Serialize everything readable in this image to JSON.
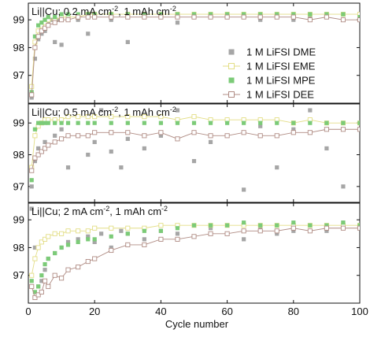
{
  "chart_data": {
    "type": "scatter",
    "shared_x": {
      "label": "Cycle number",
      "range": [
        0,
        100
      ],
      "ticks": [
        0,
        20,
        40,
        60,
        80,
        100
      ]
    },
    "legend": {
      "placement": "top-right of first panel",
      "entries": [
        {
          "label": "1 M LiFSI DME",
          "color": "#a6a6a6",
          "marker": "filled-square"
        },
        {
          "label": "1 M LiFSI EME",
          "color": "#e3de86",
          "marker": "open-square"
        },
        {
          "label": "1 M LiFSI MPE",
          "color": "#7ccb78",
          "marker": "filled-square"
        },
        {
          "label": "1 M LiFSI DEE",
          "color": "#b08c84",
          "marker": "open-square"
        }
      ]
    },
    "panels": [
      {
        "title_main": "Li||Cu; 0.2 mA cm",
        "title_sup1": "-2",
        "title_mid": ", 1 mAh cm",
        "title_sup2": "-2",
        "y_range": [
          96,
          99.6
        ],
        "y_ticks": [
          97,
          98,
          99
        ],
        "series": [
          {
            "name": "1 M LiFSI DME",
            "x": [
              1,
              2,
              3,
              4,
              5,
              6,
              7,
              8,
              9,
              10,
              12,
              15,
              18,
              20,
              25,
              30,
              35,
              40,
              45,
              50,
              55,
              60,
              65,
              70,
              75,
              80,
              85,
              90,
              95,
              100
            ],
            "y": [
              96.2,
              97.6,
              98.3,
              98.5,
              98.6,
              98.9,
              99.0,
              98.2,
              99.0,
              98.1,
              99.0,
              99.0,
              98.5,
              99.1,
              99.0,
              98.2,
              99.1,
              99.1,
              98.9,
              99.1,
              99.1,
              99.1,
              99.1,
              99.0,
              99.1,
              99.0,
              99.1,
              99.1,
              99.0,
              99.1
            ]
          },
          {
            "name": "1 M LiFSI EME",
            "x": [
              1,
              2,
              3,
              4,
              5,
              6,
              8,
              10,
              12,
              15,
              18,
              20,
              25,
              30,
              35,
              40,
              45,
              50,
              55,
              60,
              65,
              70,
              75,
              80,
              85,
              90,
              95,
              100
            ],
            "y": [
              96.6,
              98.2,
              98.6,
              98.8,
              98.9,
              99.0,
              99.0,
              99.1,
              99.1,
              99.1,
              99.2,
              99.2,
              99.2,
              99.2,
              99.2,
              99.2,
              99.2,
              99.2,
              99.2,
              99.2,
              99.2,
              99.2,
              99.2,
              99.2,
              99.2,
              99.2,
              99.2,
              99.2
            ]
          },
          {
            "name": "1 M LiFSI MPE",
            "x": [
              1,
              2,
              3,
              4,
              5,
              6,
              8,
              10,
              12,
              15,
              18,
              20,
              25,
              30,
              35,
              40,
              45,
              50,
              55,
              60,
              65,
              70,
              75,
              80,
              85,
              90,
              95,
              100
            ],
            "y": [
              96.4,
              98.4,
              98.8,
              98.9,
              99.0,
              99.1,
              99.1,
              99.2,
              99.2,
              99.2,
              99.2,
              99.2,
              99.2,
              99.2,
              99.2,
              99.2,
              99.2,
              99.2,
              99.2,
              99.2,
              99.2,
              99.2,
              99.2,
              99.2,
              99.2,
              99.2,
              99.2,
              99.1
            ]
          },
          {
            "name": "1 M LiFSI DEE",
            "x": [
              1,
              2,
              3,
              4,
              5,
              6,
              8,
              10,
              12,
              15,
              18,
              20,
              25,
              30,
              35,
              40,
              45,
              50,
              55,
              60,
              65,
              70,
              75,
              80,
              85,
              90,
              95,
              100
            ],
            "y": [
              96.3,
              98.0,
              98.4,
              98.6,
              98.7,
              98.8,
              98.9,
              99.0,
              99.0,
              99.1,
              99.1,
              99.1,
              99.1,
              99.1,
              99.1,
              99.1,
              99.1,
              99.1,
              99.1,
              99.1,
              99.1,
              99.1,
              99.1,
              99.1,
              99.0,
              99.1,
              99.0,
              99.0
            ]
          }
        ]
      },
      {
        "title_main": "Li||Cu; 0.5 mA cm",
        "title_sup1": "-2",
        "title_mid": ", 1 mAh cm",
        "title_sup2": "-2",
        "y_range": [
          96.5,
          99.6
        ],
        "y_ticks": [
          97,
          98,
          99
        ],
        "series": [
          {
            "name": "1 M LiFSI DME",
            "x": [
              1,
              2,
              3,
              5,
              8,
              10,
              12,
              15,
              18,
              20,
              22,
              25,
              28,
              30,
              35,
              40,
              45,
              50,
              55,
              60,
              65,
              70,
              75,
              80,
              85,
              90,
              95,
              100
            ],
            "y": [
              97.0,
              97.8,
              98.2,
              98.4,
              98.6,
              98.8,
              97.6,
              98.6,
              98.0,
              98.4,
              99.4,
              98.1,
              97.6,
              98.5,
              98.2,
              98.6,
              99.4,
              97.8,
              98.4,
              98.6,
              96.9,
              98.9,
              97.6,
              98.8,
              99.4,
              98.2,
              97.0,
              98.8
            ]
          },
          {
            "name": "1 M LiFSI EME",
            "x": [
              1,
              2,
              3,
              4,
              5,
              6,
              8,
              10,
              12,
              15,
              18,
              20,
              25,
              30,
              35,
              40,
              45,
              50,
              55,
              60,
              65,
              70,
              75,
              80,
              85,
              90,
              95,
              100
            ],
            "y": [
              97.6,
              98.6,
              98.9,
              99.0,
              99.1,
              99.1,
              99.1,
              99.1,
              99.2,
              99.2,
              99.2,
              99.2,
              99.2,
              99.2,
              99.2,
              99.2,
              99.1,
              99.2,
              99.1,
              99.1,
              99.1,
              99.1,
              99.1,
              99.0,
              99.1,
              99.0,
              99.0,
              99.0
            ]
          },
          {
            "name": "1 M LiFSI MPE",
            "x": [
              1,
              2,
              3,
              4,
              5,
              6,
              8,
              10,
              12,
              15,
              18,
              20,
              25,
              30,
              35,
              40,
              45,
              50,
              55,
              60,
              65,
              70,
              75,
              80,
              85,
              90,
              95,
              100
            ],
            "y": [
              97.2,
              98.8,
              99.0,
              99.0,
              99.0,
              99.0,
              99.0,
              99.0,
              99.0,
              99.0,
              99.0,
              99.0,
              99.0,
              99.0,
              99.0,
              99.0,
              99.0,
              99.0,
              99.0,
              99.0,
              99.0,
              99.0,
              99.0,
              99.0,
              99.0,
              99.0,
              99.0,
              99.0
            ]
          },
          {
            "name": "1 M LiFSI DEE",
            "x": [
              1,
              2,
              3,
              4,
              5,
              6,
              8,
              10,
              12,
              15,
              18,
              20,
              25,
              30,
              35,
              40,
              45,
              50,
              55,
              60,
              65,
              70,
              75,
              80,
              85,
              90,
              95,
              100
            ],
            "y": [
              97.5,
              97.9,
              98.0,
              98.1,
              98.2,
              98.3,
              98.4,
              98.5,
              98.6,
              98.6,
              98.6,
              98.7,
              98.7,
              98.7,
              98.6,
              98.7,
              98.5,
              98.7,
              98.6,
              98.6,
              98.7,
              98.6,
              98.6,
              98.7,
              98.7,
              98.8,
              98.8,
              98.8
            ]
          }
        ]
      },
      {
        "title_main": "Li||Cu; 2 mA cm",
        "title_sup1": "-2",
        "title_mid": ", 1 mAh cm",
        "title_sup2": "-2",
        "y_range": [
          96,
          99.6
        ],
        "y_ticks": [
          97,
          98,
          99
        ],
        "series": [
          {
            "name": "1 M LiFSI DME",
            "x": [
              1,
              2,
              3,
              4,
              5,
              6,
              8,
              10,
              12,
              15,
              18,
              20,
              22,
              25,
              28,
              30,
              35,
              40,
              45,
              50,
              55,
              60,
              65,
              70,
              75,
              80,
              85,
              90,
              95,
              100
            ],
            "y": [
              99.4,
              98.0,
              96.6,
              96.8,
              97.2,
              97.6,
              97.8,
              98.0,
              98.2,
              98.3,
              98.4,
              98.2,
              98.5,
              98.0,
              98.6,
              98.5,
              98.3,
              98.6,
              98.5,
              98.4,
              98.7,
              98.5,
              98.3,
              98.7,
              98.5,
              98.6,
              98.8,
              98.6,
              98.9,
              98.7
            ]
          },
          {
            "name": "1 M LiFSI EME",
            "x": [
              1,
              2,
              3,
              4,
              5,
              6,
              8,
              10,
              12,
              15,
              18,
              20,
              25,
              30,
              35,
              40,
              45,
              50,
              55,
              60,
              65,
              70,
              75,
              80,
              85,
              90,
              95,
              100
            ],
            "y": [
              97.0,
              97.6,
              98.0,
              98.2,
              98.3,
              98.4,
              98.5,
              98.5,
              98.6,
              98.6,
              98.6,
              98.7,
              98.7,
              98.7,
              98.7,
              98.8,
              98.8,
              98.8,
              98.8,
              98.8,
              98.8,
              98.8,
              98.8,
              98.8,
              98.8,
              98.8,
              98.8,
              98.8
            ]
          },
          {
            "name": "1 M LiFSI MPE",
            "x": [
              1,
              2,
              3,
              4,
              5,
              6,
              8,
              10,
              12,
              15,
              18,
              20,
              25,
              30,
              35,
              40,
              45,
              50,
              55,
              60,
              65,
              70,
              75,
              80,
              85,
              90,
              95,
              100
            ],
            "y": [
              96.8,
              96.4,
              96.6,
              97.0,
              97.4,
              97.6,
              97.8,
              98.0,
              98.1,
              98.2,
              98.3,
              98.3,
              98.4,
              98.5,
              98.6,
              98.6,
              98.7,
              98.8,
              98.8,
              98.8,
              98.9,
              98.8,
              98.8,
              98.9,
              98.8,
              98.8,
              98.9,
              98.8
            ]
          },
          {
            "name": "1 M LiFSI DEE",
            "x": [
              1,
              2,
              3,
              4,
              5,
              6,
              8,
              10,
              12,
              15,
              18,
              20,
              25,
              30,
              35,
              40,
              45,
              50,
              55,
              60,
              65,
              70,
              75,
              80,
              85,
              90,
              95,
              100
            ],
            "y": [
              96.6,
              96.2,
              96.3,
              96.4,
              96.8,
              96.6,
              97.0,
              96.9,
              97.2,
              97.3,
              97.5,
              97.6,
              97.9,
              98.1,
              98.1,
              98.3,
              98.3,
              98.4,
              98.5,
              98.5,
              98.6,
              98.6,
              98.6,
              98.7,
              98.6,
              98.7,
              98.7,
              98.7
            ]
          }
        ]
      }
    ]
  }
}
